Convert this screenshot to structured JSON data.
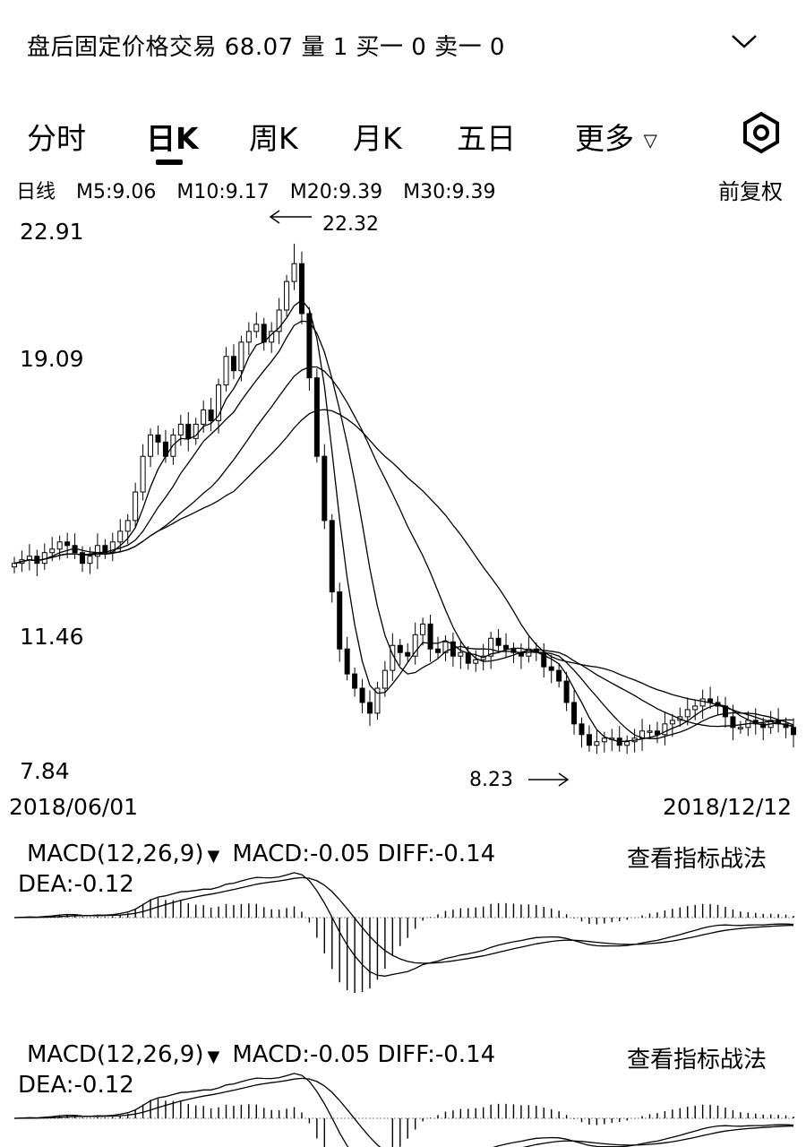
{
  "header": {
    "title": "盘后固定价格交易 68.07  量 1   买一 0   卖一 0"
  },
  "tabs": [
    {
      "label": "分时"
    },
    {
      "label": "日K"
    },
    {
      "label": "周K"
    },
    {
      "label": "月K"
    },
    {
      "label": "五日"
    },
    {
      "label": "更多"
    }
  ],
  "ma_bar": {
    "period": "日线",
    "m5": "M5:9.06",
    "m10": "M10:9.17",
    "m20": "M20:9.39",
    "m30": "M30:9.39",
    "adjust": "前复权"
  },
  "chart_data": {
    "type": "candlestick",
    "y_ticks": [
      "22.91",
      "19.09",
      "11.46",
      "7.84"
    ],
    "ylim": [
      7.84,
      22.91
    ],
    "x_start": "2018/06/01",
    "x_end": "2018/12/12",
    "high_annotation": "22.32",
    "low_annotation": "8.23",
    "close": [
      13.6,
      13.7,
      13.8,
      13.6,
      13.9,
      14.0,
      14.2,
      14.1,
      13.9,
      13.6,
      13.8,
      14.1,
      13.9,
      14.2,
      14.5,
      14.8,
      15.6,
      16.6,
      17.2,
      17.0,
      16.6,
      17.2,
      17.5,
      17.1,
      17.5,
      17.9,
      17.6,
      18.6,
      19.4,
      19.0,
      19.8,
      20.1,
      20.3,
      19.8,
      20.1,
      20.7,
      21.5,
      22.0,
      20.6,
      18.8,
      16.6,
      14.8,
      12.8,
      11.2,
      10.5,
      10.1,
      9.7,
      9.4,
      10.1,
      10.6,
      11.3,
      11.1,
      11.0,
      11.6,
      11.9,
      11.2,
      11.1,
      11.4,
      11.0,
      11.1,
      10.8,
      10.9,
      11.0,
      11.5,
      11.3,
      11.2,
      11.1,
      11.0,
      11.2,
      11.1,
      10.7,
      10.6,
      10.3,
      9.7,
      9.1,
      8.8,
      8.5,
      8.6,
      8.7,
      8.7,
      8.5,
      8.6,
      8.7,
      8.9,
      8.9,
      8.8,
      9.1,
      9.2,
      9.3,
      9.5,
      9.6,
      9.8,
      9.7,
      9.6,
      9.3,
      9.0,
      9.0,
      9.2,
      9.1,
      9.0,
      9.2,
      9.1,
      9.0,
      8.8
    ],
    "ma5": [
      13.6,
      13.7,
      13.8,
      13.6,
      13.9,
      14.0,
      14.2,
      14.1,
      13.9,
      13.6,
      13.8,
      14.1,
      13.9,
      14.2,
      14.5,
      14.8,
      15.6,
      16.6,
      17.2,
      17.0,
      16.6,
      17.2,
      17.5,
      17.1,
      17.5,
      17.9,
      17.6,
      18.6,
      19.4,
      19.0,
      19.8,
      20.1,
      20.3,
      19.8,
      20.1,
      20.7,
      21.5,
      22.0,
      20.6,
      18.8,
      16.6,
      14.8,
      12.8,
      11.2,
      10.5,
      10.1,
      9.7,
      9.4,
      10.1,
      10.6,
      11.3,
      11.1,
      11.0,
      11.6,
      11.9,
      11.2,
      11.1,
      11.4,
      11.0,
      11.1,
      10.8,
      10.9,
      11.0,
      11.5,
      11.3,
      11.2,
      11.1,
      11.0,
      11.2,
      11.1,
      10.7,
      10.6,
      10.3,
      9.7,
      9.1,
      8.8,
      8.5,
      8.6,
      8.7,
      8.7,
      8.5,
      8.6,
      8.7,
      8.9,
      8.9,
      8.8,
      9.1,
      9.2,
      9.3,
      9.5,
      9.6,
      9.8,
      9.7,
      9.6,
      9.3,
      9.0,
      9.0,
      9.2,
      9.1,
      9.0,
      9.2,
      9.1,
      9.0,
      8.8
    ],
    "macd_values": {
      "head": "MACD(12,26,9)",
      "macd": "MACD:-0.05",
      "diff": "DIFF:-0.14",
      "dea": "DEA:-0.12",
      "link": "查看指标战法"
    }
  }
}
